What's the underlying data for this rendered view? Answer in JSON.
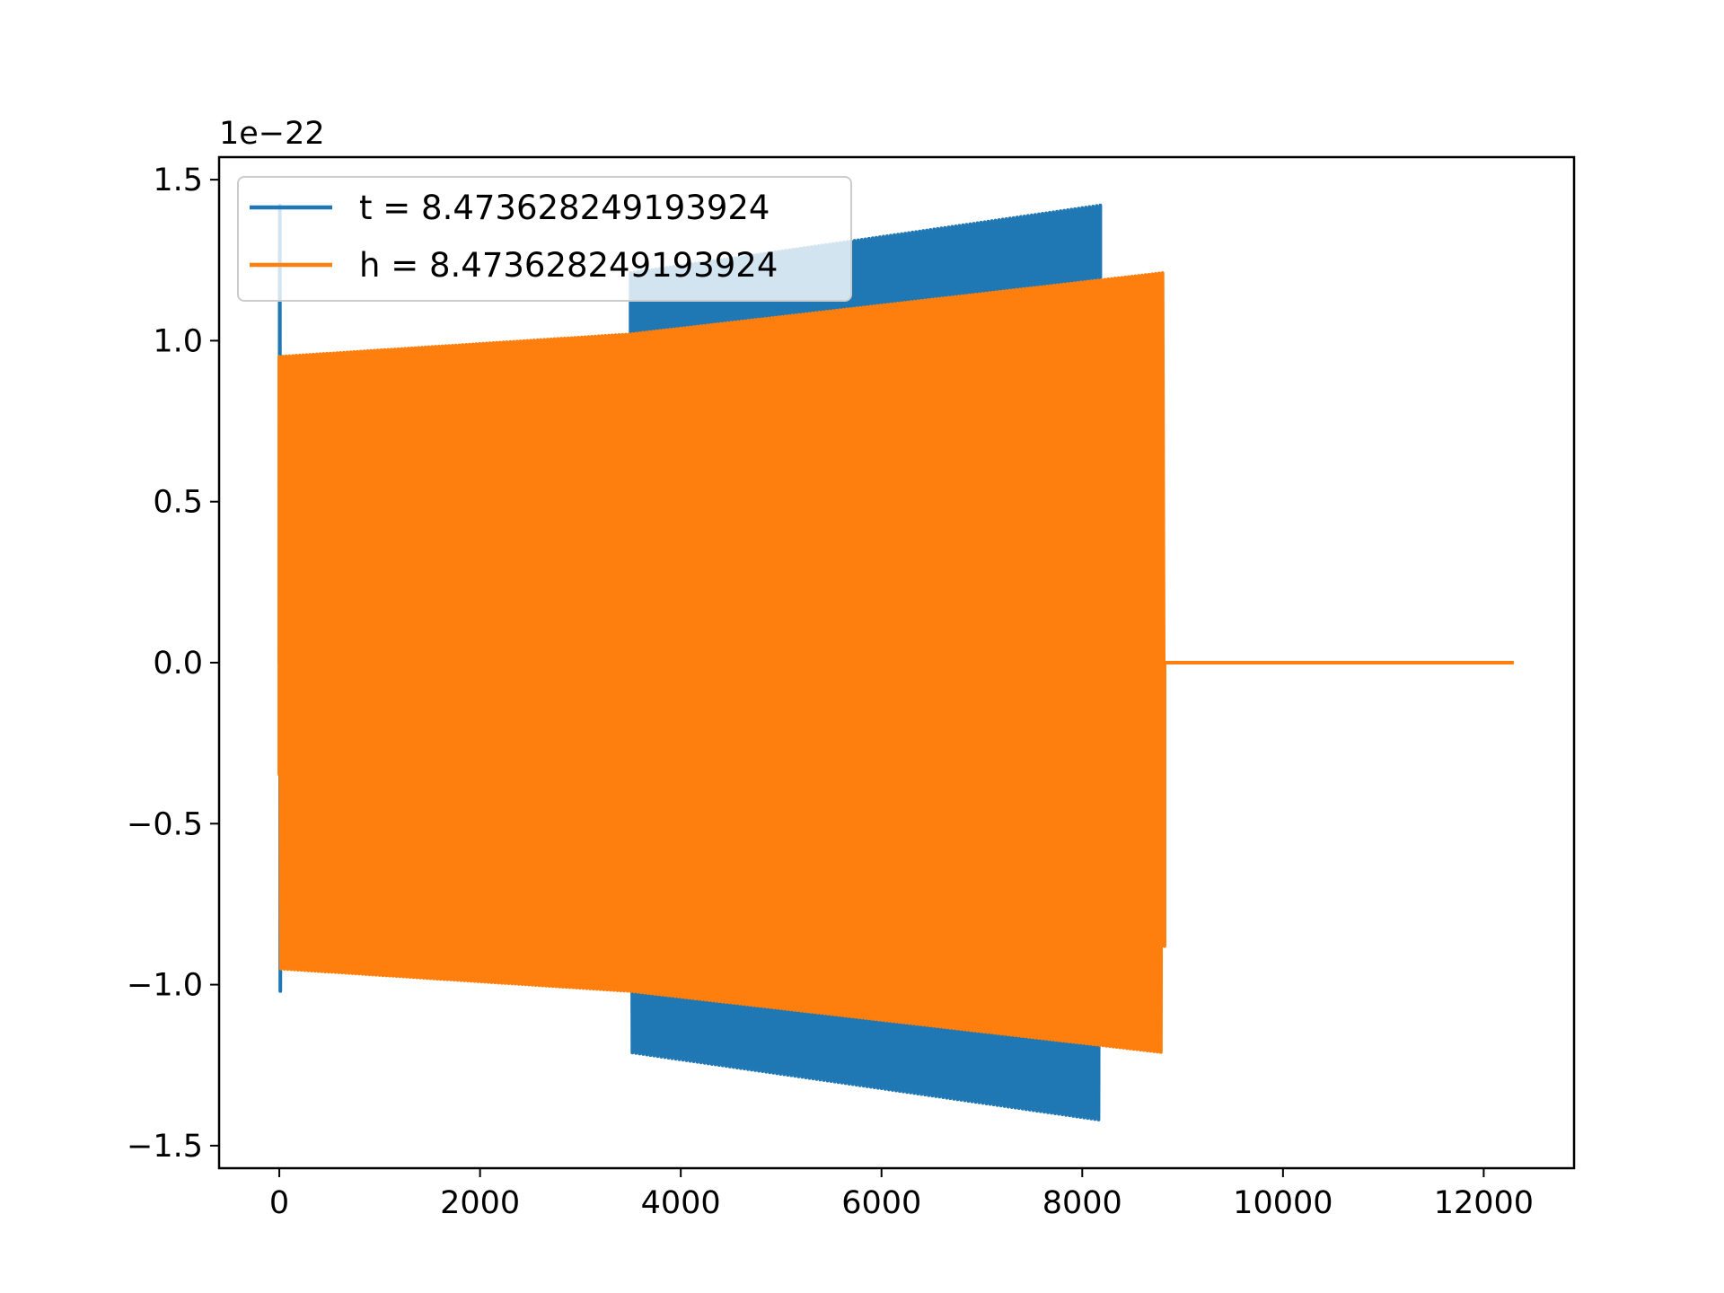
{
  "chart_data": {
    "type": "line",
    "title": "",
    "xlabel": "",
    "ylabel": "",
    "y_offset_text": "1e−22",
    "xlim": [
      -600,
      12900
    ],
    "ylim": [
      -1.57,
      1.57
    ],
    "x_ticks": [
      0,
      2000,
      4000,
      6000,
      8000,
      10000,
      12000
    ],
    "x_tick_labels": [
      "0",
      "2000",
      "4000",
      "6000",
      "8000",
      "10000",
      "12000"
    ],
    "y_ticks": [
      -1.5,
      -1.0,
      -0.5,
      0.0,
      0.5,
      1.0,
      1.5
    ],
    "y_tick_labels": [
      "−1.5",
      "−1.0",
      "−0.5",
      "0.0",
      "0.5",
      "1.0",
      "1.5"
    ],
    "grid": false,
    "legend": {
      "placement": "upper left"
    },
    "series": [
      {
        "name": "t = 8.473628249193924",
        "color": "#1f77b4",
        "description_points": [
          {
            "x": 0,
            "y_upper": 1.42,
            "y_lower": -1.02
          },
          {
            "x": 3500,
            "y_upper": 1.21,
            "y_lower": -1.21
          },
          {
            "x": 8180,
            "y_upper": 1.42,
            "y_lower": -1.42
          }
        ]
      },
      {
        "name": "h = 8.473628249193924",
        "color": "#ff7f0e",
        "description_points": [
          {
            "x": 0,
            "y_upper": 0.95,
            "y_lower": -0.95
          },
          {
            "x": 3500,
            "y_upper": 1.02,
            "y_lower": -1.02
          },
          {
            "x": 8800,
            "y_upper": 1.21,
            "y_lower": -1.21
          },
          {
            "x": 12300,
            "y_upper": 0.0,
            "y_lower": 0.0
          }
        ]
      }
    ]
  }
}
